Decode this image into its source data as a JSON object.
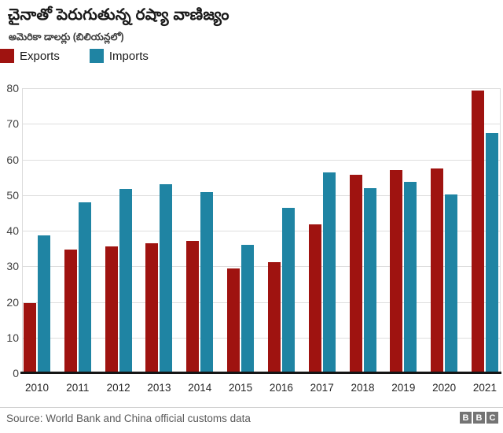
{
  "header": {
    "title": "చైనాతో పెరుగుతున్న రష్యా వాణిజ్యం",
    "subtitle": "అమెరికా డాలర్లు (బిలియన్లలో)"
  },
  "chart_data": {
    "type": "bar",
    "title": "చైనాతో పెరుగుతున్న రష్యా వాణిజ్యం",
    "subtitle_units": "అమెరికా డాలర్లు (బిలియన్లలో)",
    "categories": [
      "2010",
      "2011",
      "2012",
      "2013",
      "2014",
      "2015",
      "2016",
      "2017",
      "2018",
      "2019",
      "2020",
      "2021"
    ],
    "series": [
      {
        "name": "Exports",
        "color": "#9f1310",
        "values": [
          19.7,
          34.6,
          35.7,
          36.5,
          37.1,
          29.4,
          31.2,
          41.8,
          55.8,
          57.0,
          57.5,
          79.3
        ]
      },
      {
        "name": "Imports",
        "color": "#1f84a3",
        "values": [
          38.7,
          47.9,
          51.7,
          53.0,
          50.8,
          36.0,
          46.4,
          56.3,
          52.0,
          53.8,
          50.2,
          67.5
        ]
      }
    ],
    "xlabel": "",
    "ylabel": "",
    "ylim": [
      0,
      80
    ],
    "yticks": [
      0,
      10,
      20,
      30,
      40,
      50,
      60,
      70,
      80
    ],
    "grid": "horizontal",
    "legend_position": "top-left"
  },
  "footer": {
    "source": "Source: World Bank and China official customs data",
    "logo_letters": [
      "B",
      "B",
      "C"
    ]
  }
}
